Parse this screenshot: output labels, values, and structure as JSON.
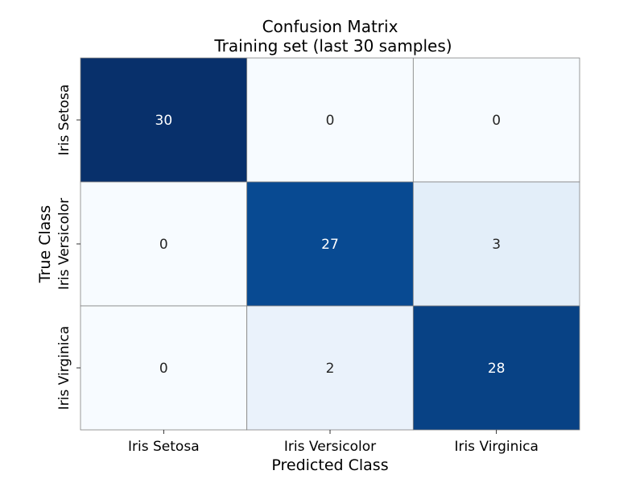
{
  "chart_data": {
    "type": "heatmap",
    "title": "Confusion Matrix",
    "subtitle": "Training set (last 30 samples)",
    "xlabel": "Predicted Class",
    "ylabel": "True Class",
    "x_categories": [
      "Iris Setosa",
      "Iris Versicolor",
      "Iris Virginica"
    ],
    "y_categories": [
      "Iris Setosa",
      "Iris Versicolor",
      "Iris Virginica"
    ],
    "values": [
      [
        30,
        0,
        0
      ],
      [
        0,
        27,
        3
      ],
      [
        0,
        2,
        28
      ]
    ],
    "colormap": "Blues",
    "color_low": "#f7fbff",
    "color_high": "#08306b",
    "vmin": 0,
    "vmax": 30,
    "grid": false,
    "legend": "none"
  }
}
